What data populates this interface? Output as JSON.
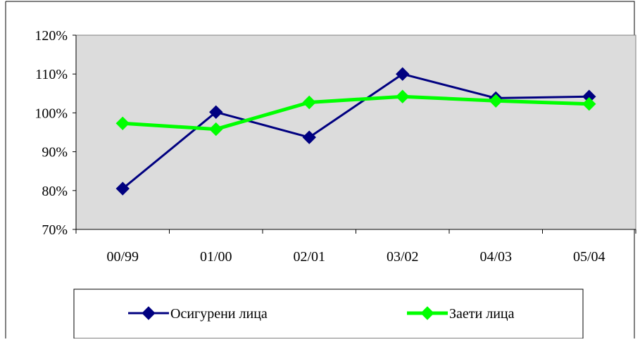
{
  "chart_data": {
    "type": "line",
    "categories": [
      "00/99",
      "01/00",
      "02/01",
      "03/02",
      "04/03",
      "05/04"
    ],
    "series": [
      {
        "name": "Осигурени лица",
        "values": [
          80.5,
          100.2,
          93.7,
          110.0,
          103.8,
          104.2
        ],
        "color": "#000080",
        "marker": "diamond"
      },
      {
        "name": "Заети лица",
        "values": [
          97.3,
          95.8,
          102.7,
          104.2,
          103.1,
          102.3
        ],
        "color": "#00FF00",
        "marker": "diamond"
      }
    ],
    "y_ticks": [
      "70%",
      "80%",
      "90%",
      "100%",
      "110%",
      "120%"
    ],
    "ylim": [
      70,
      120
    ],
    "y_unit": "%",
    "plot_background": "#DCDCDC",
    "legend_position": "bottom",
    "grid": false
  }
}
